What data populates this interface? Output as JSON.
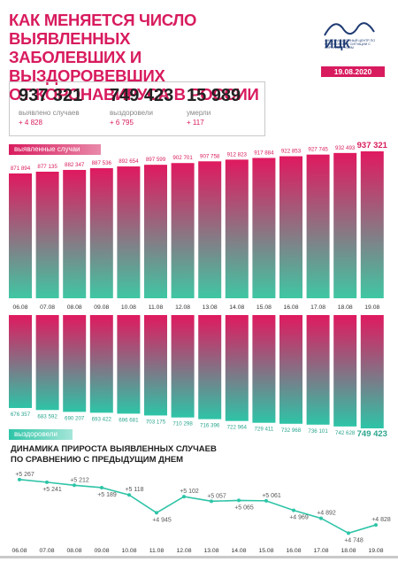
{
  "header": {
    "title_lines": [
      "Как меняется число выявленных",
      "заболевших и выздоровевших",
      "от коронавируса в России"
    ],
    "logo_word": "ИЦК",
    "logo_subtitle": "ИНФОРМАЦИОННЫЙ ЦЕНТР ПО МОНИТОРИНГУ СИТУАЦИИ С КОРОНАВИРУСОМ",
    "date": "19.08.2020"
  },
  "stats": [
    {
      "value": "937 321",
      "label": "выявлено случаев",
      "delta": "+ 4 828"
    },
    {
      "value": "749 423",
      "label": "выздоровели",
      "delta": "+ 6 795"
    },
    {
      "value": "15 989",
      "label": "умерли",
      "delta": "+ 117"
    }
  ],
  "colors": {
    "cases": "#d81b5e",
    "recovered": "#2ec4a7"
  },
  "chart_data": [
    {
      "type": "bar",
      "title": "выявленные случаи",
      "categories": [
        "06.08",
        "07.08",
        "08.08",
        "09.08",
        "10.08",
        "11.08",
        "12.08",
        "13.08",
        "14.08",
        "15.08",
        "16.08",
        "17.08",
        "18.08",
        "19.08"
      ],
      "values": [
        871894,
        877135,
        882347,
        887536,
        892654,
        897599,
        902701,
        907758,
        912823,
        917884,
        922853,
        927745,
        932493,
        937321
      ],
      "value_labels": [
        "871 894",
        "877 135",
        "882 347",
        "887 536",
        "892 654",
        "897 599",
        "902 701",
        "907 758",
        "912 823",
        "917 884",
        "922 853",
        "927 745",
        "932 493",
        "937 321"
      ]
    },
    {
      "type": "bar",
      "title": "выздоровели",
      "categories": [
        "06.08",
        "07.08",
        "08.08",
        "09.08",
        "10.08",
        "11.08",
        "12.08",
        "13.08",
        "14.08",
        "15.08",
        "16.08",
        "17.08",
        "18.08",
        "19.08"
      ],
      "values": [
        676357,
        683592,
        690207,
        693422,
        696681,
        703175,
        710298,
        716396,
        722964,
        729411,
        732968,
        736101,
        742628,
        749423
      ],
      "value_labels": [
        "676 357",
        "683 592",
        "690 207",
        "693 422",
        "696 681",
        "703 175",
        "710 298",
        "716 396",
        "722 964",
        "729 411",
        "732 968",
        "736 101",
        "742 628",
        "749 423"
      ]
    },
    {
      "type": "line",
      "title": "Динамика прироста выявленных случаев по сравнению с предыдущим днем",
      "categories": [
        "06.08",
        "07.08",
        "08.08",
        "09.08",
        "10.08",
        "11.08",
        "12.08",
        "13.08",
        "14.08",
        "15.08",
        "16.08",
        "17.08",
        "18.08",
        "19.08"
      ],
      "values": [
        5267,
        5241,
        5212,
        5189,
        5118,
        4945,
        5102,
        5057,
        5065,
        5061,
        4969,
        4892,
        4748,
        4828
      ],
      "value_labels": [
        "+5 267",
        "+5 241",
        "+5 212",
        "+5 189",
        "+5 118",
        "+4 945",
        "+5 102",
        "+5 057",
        "+5 065",
        "+5 061",
        "+4 969",
        "+4 892",
        "+4 748",
        "+4 828"
      ]
    }
  ]
}
